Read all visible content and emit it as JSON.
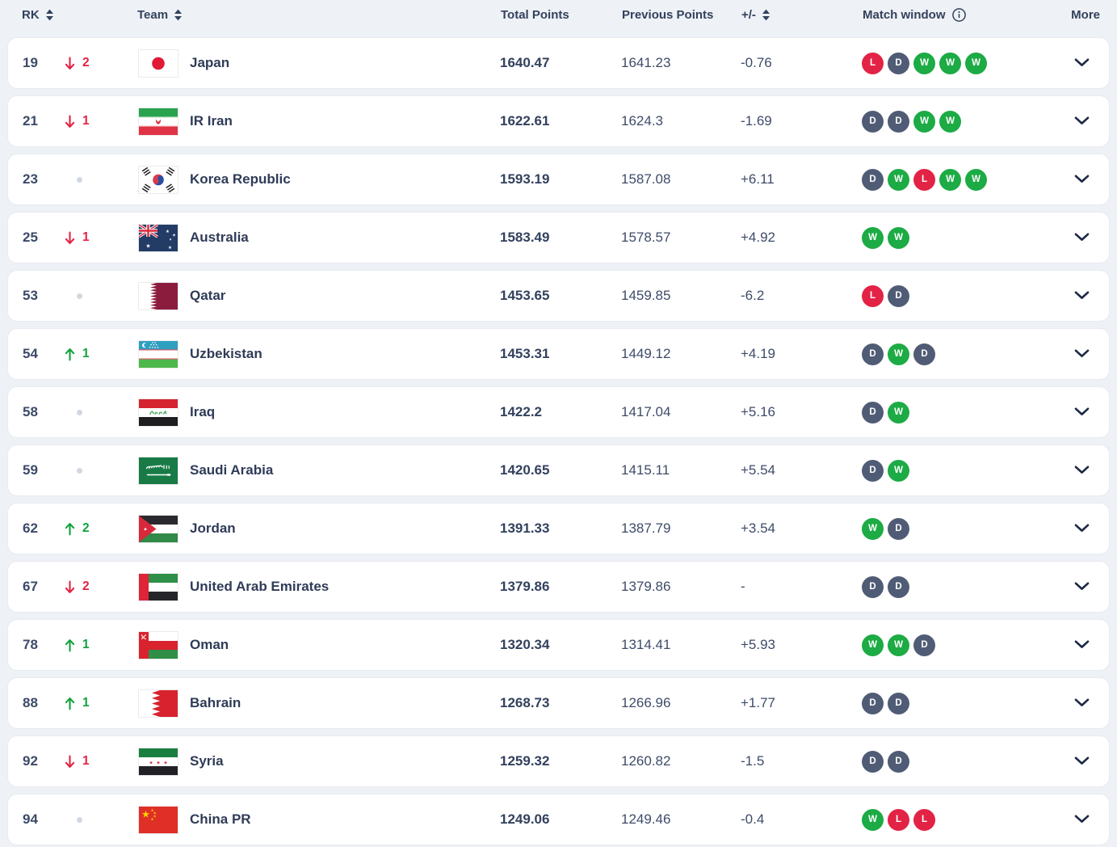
{
  "header": {
    "rk": "RK",
    "team": "Team",
    "total_points": "Total Points",
    "previous_points": "Previous Points",
    "plus_minus": "+/-",
    "match_window": "Match window",
    "more": "More"
  },
  "colors": {
    "win_badge": "#1cab44",
    "loss_badge": "#e32345",
    "draw_badge": "#505c75",
    "rank_up": "#11a23d",
    "rank_down": "#e32345",
    "text_navy": "#33415c"
  },
  "icons": {
    "sort": "sort-arrows-icon",
    "info": "info-circle-icon",
    "more": "chevron-down-icon"
  },
  "rows": [
    {
      "rank": "19",
      "change": {
        "direction": "down",
        "value": "2"
      },
      "team": "Japan",
      "flag": "japan",
      "total_points": "1640.47",
      "previous_points": "1641.23",
      "plus_minus": "-0.76",
      "match_window": [
        "L",
        "D",
        "W",
        "W",
        "W"
      ]
    },
    {
      "rank": "21",
      "change": {
        "direction": "down",
        "value": "1"
      },
      "team": "IR Iran",
      "flag": "iran",
      "total_points": "1622.61",
      "previous_points": "1624.3",
      "plus_minus": "-1.69",
      "match_window": [
        "D",
        "D",
        "W",
        "W"
      ]
    },
    {
      "rank": "23",
      "change": {
        "direction": "none",
        "value": ""
      },
      "team": "Korea Republic",
      "flag": "korea",
      "total_points": "1593.19",
      "previous_points": "1587.08",
      "plus_minus": "+6.11",
      "match_window": [
        "D",
        "W",
        "L",
        "W",
        "W"
      ]
    },
    {
      "rank": "25",
      "change": {
        "direction": "down",
        "value": "1"
      },
      "team": "Australia",
      "flag": "australia",
      "total_points": "1583.49",
      "previous_points": "1578.57",
      "plus_minus": "+4.92",
      "match_window": [
        "W",
        "W"
      ]
    },
    {
      "rank": "53",
      "change": {
        "direction": "none",
        "value": ""
      },
      "team": "Qatar",
      "flag": "qatar",
      "total_points": "1453.65",
      "previous_points": "1459.85",
      "plus_minus": "-6.2",
      "match_window": [
        "L",
        "D"
      ]
    },
    {
      "rank": "54",
      "change": {
        "direction": "up",
        "value": "1"
      },
      "team": "Uzbekistan",
      "flag": "uzbekistan",
      "total_points": "1453.31",
      "previous_points": "1449.12",
      "plus_minus": "+4.19",
      "match_window": [
        "D",
        "W",
        "D"
      ]
    },
    {
      "rank": "58",
      "change": {
        "direction": "none",
        "value": ""
      },
      "team": "Iraq",
      "flag": "iraq",
      "total_points": "1422.2",
      "previous_points": "1417.04",
      "plus_minus": "+5.16",
      "match_window": [
        "D",
        "W"
      ]
    },
    {
      "rank": "59",
      "change": {
        "direction": "none",
        "value": ""
      },
      "team": "Saudi Arabia",
      "flag": "saudi",
      "total_points": "1420.65",
      "previous_points": "1415.11",
      "plus_minus": "+5.54",
      "match_window": [
        "D",
        "W"
      ]
    },
    {
      "rank": "62",
      "change": {
        "direction": "up",
        "value": "2"
      },
      "team": "Jordan",
      "flag": "jordan",
      "total_points": "1391.33",
      "previous_points": "1387.79",
      "plus_minus": "+3.54",
      "match_window": [
        "W",
        "D"
      ]
    },
    {
      "rank": "67",
      "change": {
        "direction": "down",
        "value": "2"
      },
      "team": "United Arab Emirates",
      "flag": "uae",
      "total_points": "1379.86",
      "previous_points": "1379.86",
      "plus_minus": "-",
      "match_window": [
        "D",
        "D"
      ]
    },
    {
      "rank": "78",
      "change": {
        "direction": "up",
        "value": "1"
      },
      "team": "Oman",
      "flag": "oman",
      "total_points": "1320.34",
      "previous_points": "1314.41",
      "plus_minus": "+5.93",
      "match_window": [
        "W",
        "W",
        "D"
      ]
    },
    {
      "rank": "88",
      "change": {
        "direction": "up",
        "value": "1"
      },
      "team": "Bahrain",
      "flag": "bahrain",
      "total_points": "1268.73",
      "previous_points": "1266.96",
      "plus_minus": "+1.77",
      "match_window": [
        "D",
        "D"
      ]
    },
    {
      "rank": "92",
      "change": {
        "direction": "down",
        "value": "1"
      },
      "team": "Syria",
      "flag": "syria",
      "total_points": "1259.32",
      "previous_points": "1260.82",
      "plus_minus": "-1.5",
      "match_window": [
        "D",
        "D"
      ]
    },
    {
      "rank": "94",
      "change": {
        "direction": "none",
        "value": ""
      },
      "team": "China PR",
      "flag": "china",
      "total_points": "1249.06",
      "previous_points": "1249.46",
      "plus_minus": "-0.4",
      "match_window": [
        "W",
        "L",
        "L"
      ]
    }
  ]
}
